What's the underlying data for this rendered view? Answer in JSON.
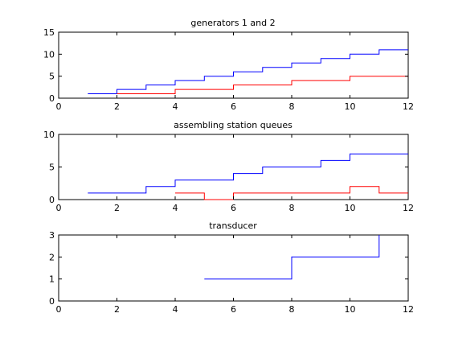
{
  "chart_data": [
    {
      "type": "line",
      "step": true,
      "title": "generators 1 and 2",
      "xlabel": "",
      "ylabel": "",
      "xlim": [
        0,
        12
      ],
      "ylim": [
        0,
        15
      ],
      "xticks": [
        0,
        2,
        4,
        6,
        8,
        10,
        12
      ],
      "yticks": [
        0,
        5,
        10,
        15
      ],
      "grid": false,
      "series": [
        {
          "color": "#0000ff",
          "x": [
            1,
            2,
            3,
            4,
            5,
            6,
            7,
            8,
            9,
            10,
            11,
            12
          ],
          "y": [
            1,
            2,
            3,
            4,
            5,
            6,
            7,
            8,
            9,
            10,
            11,
            11
          ]
        },
        {
          "color": "#ff0000",
          "x": [
            2,
            4,
            6,
            8,
            10,
            12
          ],
          "y": [
            1,
            2,
            3,
            4,
            5,
            5
          ]
        }
      ]
    },
    {
      "type": "line",
      "step": true,
      "title": "assembling station queues",
      "xlabel": "",
      "ylabel": "",
      "xlim": [
        0,
        12
      ],
      "ylim": [
        0,
        10
      ],
      "xticks": [
        0,
        2,
        4,
        6,
        8,
        10,
        12
      ],
      "yticks": [
        0,
        5,
        10
      ],
      "grid": false,
      "series": [
        {
          "color": "#0000ff",
          "x": [
            1,
            3,
            4,
            6,
            7,
            9,
            10,
            12
          ],
          "y": [
            1,
            2,
            3,
            4,
            5,
            6,
            7,
            7
          ]
        },
        {
          "color": "#ff0000",
          "x": [
            4,
            5,
            6,
            10,
            11,
            12
          ],
          "y": [
            1,
            0,
            1,
            2,
            1,
            1
          ]
        }
      ]
    },
    {
      "type": "line",
      "step": true,
      "title": "transducer",
      "xlabel": "",
      "ylabel": "",
      "xlim": [
        0,
        12
      ],
      "ylim": [
        0,
        3
      ],
      "xticks": [
        0,
        2,
        4,
        6,
        8,
        10,
        12
      ],
      "yticks": [
        0,
        1,
        2,
        3
      ],
      "grid": false,
      "series": [
        {
          "color": "#0000ff",
          "x": [
            5,
            8,
            11
          ],
          "y": [
            1,
            2,
            3
          ]
        }
      ]
    }
  ]
}
